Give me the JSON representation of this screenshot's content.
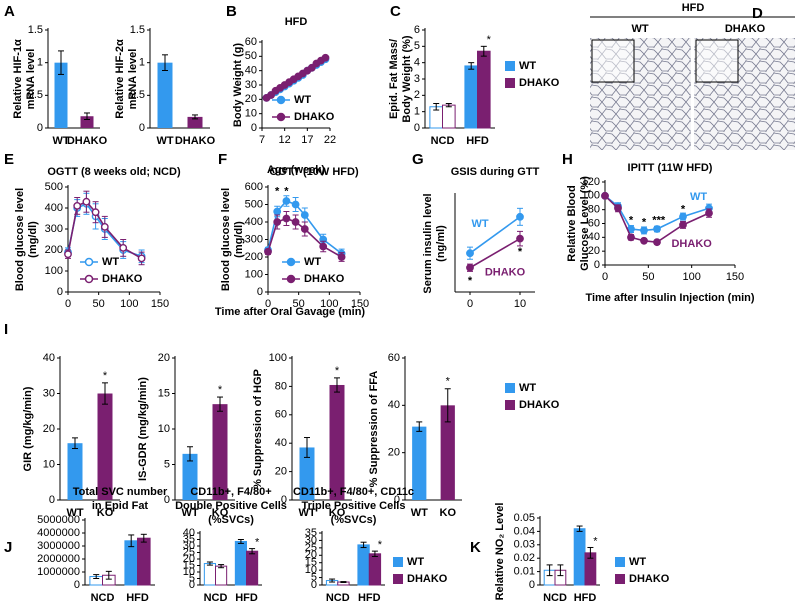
{
  "shared_xlabel": "Time after Oral Gavage (min)",
  "micrograph": {
    "panel": "D",
    "title": "HFD",
    "labels": [
      "WT",
      "DHAKO"
    ]
  },
  "chart_data": [
    {
      "type": "bar",
      "panel": "A",
      "ylabel": [
        "Relative HIF-1α",
        "mRNA level"
      ],
      "categories": [
        "WT",
        "DHAKO"
      ],
      "values": [
        1,
        0.18
      ],
      "errors": [
        0.18,
        0.05
      ],
      "colors": [
        "#3399ee",
        "#7a1f70"
      ],
      "ylim": [
        0,
        1.5
      ],
      "yticks": [
        0,
        0.5,
        1,
        1.5
      ]
    },
    {
      "type": "bar",
      "ylabel": [
        "Relative HIF-2α",
        "mRNA level"
      ],
      "categories": [
        "WT",
        "DHAKO"
      ],
      "values": [
        1,
        0.17
      ],
      "errors": [
        0.12,
        0.03
      ],
      "colors": [
        "#3399ee",
        "#7a1f70"
      ],
      "ylim": [
        0,
        1.5
      ],
      "yticks": [
        0,
        0.5,
        1,
        1.5
      ]
    },
    {
      "type": "line",
      "panel": "B",
      "title": "HFD",
      "xlabel": "Age (week)",
      "ylabel": "Body Weight (g)",
      "x": [
        8,
        9,
        10,
        11,
        12,
        13,
        14,
        15,
        16,
        17,
        18,
        19,
        20,
        21
      ],
      "series": [
        {
          "name": "WT",
          "color": "#3399ee",
          "values": [
            21,
            23,
            25,
            27,
            29,
            31,
            33,
            35,
            37,
            40,
            42,
            44,
            46,
            48
          ]
        },
        {
          "name": "DHAKO",
          "color": "#7a1f70",
          "values": [
            21,
            23,
            26,
            28,
            30,
            32,
            34,
            36,
            38,
            40,
            42,
            45,
            47,
            49
          ]
        }
      ],
      "xlim": [
        7,
        22
      ],
      "xticks": [
        7,
        12,
        17,
        22
      ],
      "ylim": [
        0,
        60
      ],
      "yticks": [
        0,
        10,
        20,
        30,
        40,
        50,
        60
      ],
      "legend": true
    },
    {
      "type": "bar",
      "panel": "C",
      "ylabel": [
        "Epid. Fat Mass/",
        "Body Weight (%)"
      ],
      "categories": [
        "NCD",
        "HFD"
      ],
      "hollow": [
        true,
        false
      ],
      "series": [
        {
          "name": "WT",
          "color": "#3399ee",
          "values": [
            1.3,
            3.8
          ],
          "errors": [
            0.2,
            0.2
          ]
        },
        {
          "name": "DHAKO",
          "color": "#7a1f70",
          "values": [
            1.4,
            4.7
          ],
          "errors": [
            0.1,
            0.3
          ],
          "stars": [
            null,
            "*"
          ]
        }
      ],
      "ylim": [
        0,
        6
      ],
      "yticks": [
        0,
        1,
        2,
        3,
        4,
        5,
        6
      ],
      "legend": true
    },
    {
      "type": "line",
      "panel": "E",
      "title": "OGTT (8 weeks old; NCD)",
      "ylabel": [
        "Blood glucose level",
        "(mg/dl)"
      ],
      "x": [
        0,
        15,
        30,
        45,
        60,
        90,
        120
      ],
      "hollow": true,
      "series": [
        {
          "name": "WT",
          "color": "#3399ee",
          "values": [
            190,
            400,
            420,
            360,
            300,
            200,
            170
          ],
          "errors": [
            20,
            40,
            50,
            60,
            50,
            40,
            30
          ]
        },
        {
          "name": "DHAKO",
          "color": "#7a1f70",
          "values": [
            180,
            410,
            430,
            380,
            310,
            210,
            160
          ],
          "errors": [
            20,
            40,
            50,
            50,
            50,
            40,
            30
          ]
        }
      ],
      "xlim": [
        0,
        150
      ],
      "xticks": [
        0,
        50,
        100,
        150
      ],
      "ylim": [
        0,
        500
      ],
      "yticks": [
        0,
        100,
        200,
        300,
        400,
        500
      ],
      "legend": true
    },
    {
      "type": "line",
      "panel": "F",
      "title": "OGTT (10W HFD)",
      "ylabel": [
        "Blood glucose level",
        "(mg/dl)"
      ],
      "x": [
        0,
        15,
        30,
        45,
        60,
        90,
        120
      ],
      "series": [
        {
          "name": "WT",
          "color": "#3399ee",
          "values": [
            240,
            460,
            520,
            500,
            440,
            300,
            220
          ],
          "errors": [
            15,
            30,
            30,
            40,
            40,
            30,
            25
          ]
        },
        {
          "name": "DHAKO",
          "color": "#7a1f70",
          "values": [
            230,
            400,
            420,
            400,
            360,
            260,
            200
          ],
          "errors": [
            15,
            40,
            40,
            40,
            40,
            30,
            25
          ]
        }
      ],
      "annotations": [
        {
          "text": "*",
          "x": 15,
          "y": 575
        },
        {
          "text": "*",
          "x": 30,
          "y": 575
        }
      ],
      "xlim": [
        0,
        150
      ],
      "xticks": [
        0,
        50,
        100,
        150
      ],
      "ylim": [
        0,
        600
      ],
      "yticks": [
        0,
        100,
        200,
        300,
        400,
        500,
        600
      ],
      "legend": true
    },
    {
      "type": "line",
      "panel": "G",
      "title": "GSIS during GTT",
      "ylabel": [
        "Serum insulin level",
        "(ng/ml)"
      ],
      "x": [
        0,
        10
      ],
      "series": [
        {
          "name": "WT",
          "color": "#3399ee",
          "values": [
            3.2,
            6.2
          ],
          "errors": [
            0.5,
            0.7
          ]
        },
        {
          "name": "DHAKO",
          "color": "#7a1f70",
          "values": [
            2.0,
            4.4
          ],
          "errors": [
            0.3,
            0.6
          ]
        }
      ],
      "annotations": [
        {
          "text": "WT",
          "x": 2,
          "y": 5.6,
          "color": "#3399ee"
        },
        {
          "text": "DHAKO",
          "x": 7,
          "y": 1.6,
          "color": "#7a1f70"
        },
        {
          "text": "*",
          "x": 0,
          "y": 0.9
        },
        {
          "text": "*",
          "x": 10,
          "y": 3.3
        }
      ],
      "xlim": [
        -3,
        13
      ],
      "xticks": [
        0,
        10
      ],
      "ylim": [
        0,
        8
      ]
    },
    {
      "type": "line",
      "panel": "H",
      "title": "IPITT (11W HFD)",
      "xlabel": "Time after Insulin Injection (min)",
      "ylabel": [
        "Relative Blood",
        "Glucose Level (%)"
      ],
      "x": [
        0,
        15,
        30,
        45,
        60,
        90,
        120
      ],
      "series": [
        {
          "name": "WT",
          "color": "#3399ee",
          "values": [
            100,
            85,
            52,
            50,
            52,
            70,
            82
          ],
          "errors": [
            3,
            5,
            5,
            5,
            4,
            5,
            6
          ]
        },
        {
          "name": "DHAKO",
          "color": "#7a1f70",
          "values": [
            100,
            82,
            40,
            35,
            33,
            58,
            75
          ],
          "errors": [
            3,
            5,
            4,
            3,
            3,
            5,
            6
          ]
        }
      ],
      "annotations": [
        {
          "text": "*",
          "x": 30,
          "y": 64
        },
        {
          "text": "*",
          "x": 45,
          "y": 61
        },
        {
          "text": "***",
          "x": 62,
          "y": 64
        },
        {
          "text": "*",
          "x": 90,
          "y": 80
        },
        {
          "text": "WT",
          "x": 108,
          "y": 98,
          "color": "#3399ee"
        },
        {
          "text": "DHAKO",
          "x": 100,
          "y": 30,
          "color": "#7a1f70"
        }
      ],
      "xlim": [
        0,
        150
      ],
      "xticks": [
        0,
        50,
        100,
        150
      ],
      "ylim": [
        0,
        120
      ],
      "yticks": [
        0,
        20,
        40,
        60,
        80,
        100,
        120
      ]
    },
    {
      "type": "bar",
      "panel": "I",
      "ylabel": "GIR (mg/kg/min)",
      "categories": [
        "WT",
        "KO"
      ],
      "values": [
        16,
        30
      ],
      "errors": [
        1.5,
        3
      ],
      "stars": [
        null,
        "*"
      ],
      "colors": [
        "#3399ee",
        "#7a1f70"
      ],
      "ylim": [
        0,
        40
      ],
      "yticks": [
        0,
        10,
        20,
        30,
        40
      ]
    },
    {
      "type": "bar",
      "ylabel": "IS-GDR (mg/kg/min)",
      "categories": [
        "WT",
        "KO"
      ],
      "values": [
        6.5,
        13.5
      ],
      "errors": [
        1,
        1
      ],
      "stars": [
        null,
        "*"
      ],
      "colors": [
        "#3399ee",
        "#7a1f70"
      ],
      "ylim": [
        0,
        20
      ],
      "yticks": [
        0,
        5,
        10,
        15,
        20
      ]
    },
    {
      "type": "bar",
      "ylabel": "% Suppression of HGP",
      "categories": [
        "WT",
        "KO"
      ],
      "values": [
        37,
        81
      ],
      "errors": [
        7,
        5
      ],
      "stars": [
        null,
        "*"
      ],
      "colors": [
        "#3399ee",
        "#7a1f70"
      ],
      "ylim": [
        0,
        100
      ],
      "yticks": [
        0,
        20,
        40,
        60,
        80,
        100
      ]
    },
    {
      "type": "bar",
      "ylabel": "% Suppression of FFA",
      "categories": [
        "WT",
        "KO"
      ],
      "values": [
        31,
        40
      ],
      "errors": [
        2,
        7
      ],
      "stars": [
        null,
        "*"
      ],
      "colors": [
        "#3399ee",
        "#7a1f70"
      ],
      "ylim": [
        0,
        60
      ],
      "yticks": [
        0,
        20,
        40,
        60
      ],
      "legend_entries": [
        {
          "name": "WT",
          "color": "#3399ee"
        },
        {
          "name": "DHAKO",
          "color": "#7a1f70"
        }
      ]
    },
    {
      "type": "bar",
      "panel": "J",
      "title": [
        "Total SVC number",
        "in Epid Fat"
      ],
      "categories": [
        "NCD",
        "HFD"
      ],
      "hollow": [
        true,
        false
      ],
      "series": [
        {
          "name": "WT",
          "color": "#3399ee",
          "values": [
            650000,
            3400000
          ],
          "errors": [
            150000,
            450000
          ]
        },
        {
          "name": "DHAKO",
          "color": "#7a1f70",
          "values": [
            750000,
            3600000
          ],
          "errors": [
            300000,
            300000
          ]
        }
      ],
      "ylim": [
        0,
        5000000
      ],
      "yticks": [
        0,
        1000000,
        2000000,
        3000000,
        4000000,
        5000000
      ]
    },
    {
      "type": "bar",
      "title": [
        "CD11b+, F4/80+",
        "Double Positive Cells",
        "(%SVCs)"
      ],
      "categories": [
        "NCD",
        "HFD"
      ],
      "hollow": [
        true,
        false
      ],
      "series": [
        {
          "name": "WT",
          "color": "#3399ee",
          "values": [
            16.5,
            33.5
          ],
          "errors": [
            1.2,
            1.5
          ]
        },
        {
          "name": "DHAKO",
          "color": "#7a1f70",
          "values": [
            14.5,
            26
          ],
          "errors": [
            1.2,
            2
          ],
          "stars": [
            null,
            "*"
          ]
        }
      ],
      "ylim": [
        0,
        40
      ],
      "yticks": [
        0,
        5,
        10,
        15,
        20,
        25,
        30,
        35,
        40
      ]
    },
    {
      "type": "bar",
      "title": [
        "CD11b+, F4/80+, CD11c",
        "Triple Positive Cells",
        "(%SVCs)"
      ],
      "categories": [
        "NCD",
        "HFD"
      ],
      "hollow": [
        true,
        false
      ],
      "series": [
        {
          "name": "WT",
          "color": "#3399ee",
          "values": [
            3,
            27
          ],
          "errors": [
            1,
            1.8
          ]
        },
        {
          "name": "DHAKO",
          "color": "#7a1f70",
          "values": [
            2,
            21
          ],
          "errors": [
            0.3,
            1.8
          ],
          "stars": [
            null,
            "*"
          ]
        }
      ],
      "ylim": [
        0,
        35
      ],
      "yticks": [
        0,
        5,
        10,
        15,
        20,
        25,
        30,
        35
      ],
      "legend": true
    },
    {
      "type": "bar",
      "panel": "K",
      "ylabel": "Relative NO₂ Level",
      "categories": [
        "NCD",
        "HFD"
      ],
      "hollow": [
        true,
        false
      ],
      "series": [
        {
          "name": "WT",
          "color": "#3399ee",
          "values": [
            0.011,
            0.042
          ],
          "errors": [
            0.004,
            0.002
          ]
        },
        {
          "name": "DHAKO",
          "color": "#7a1f70",
          "values": [
            0.011,
            0.024
          ],
          "errors": [
            0.004,
            0.004
          ],
          "stars": [
            null,
            "*"
          ]
        }
      ],
      "ylim": [
        0,
        0.05
      ],
      "yticks": [
        0,
        0.01,
        0.02,
        0.03,
        0.04,
        0.05
      ],
      "legend": true
    }
  ]
}
